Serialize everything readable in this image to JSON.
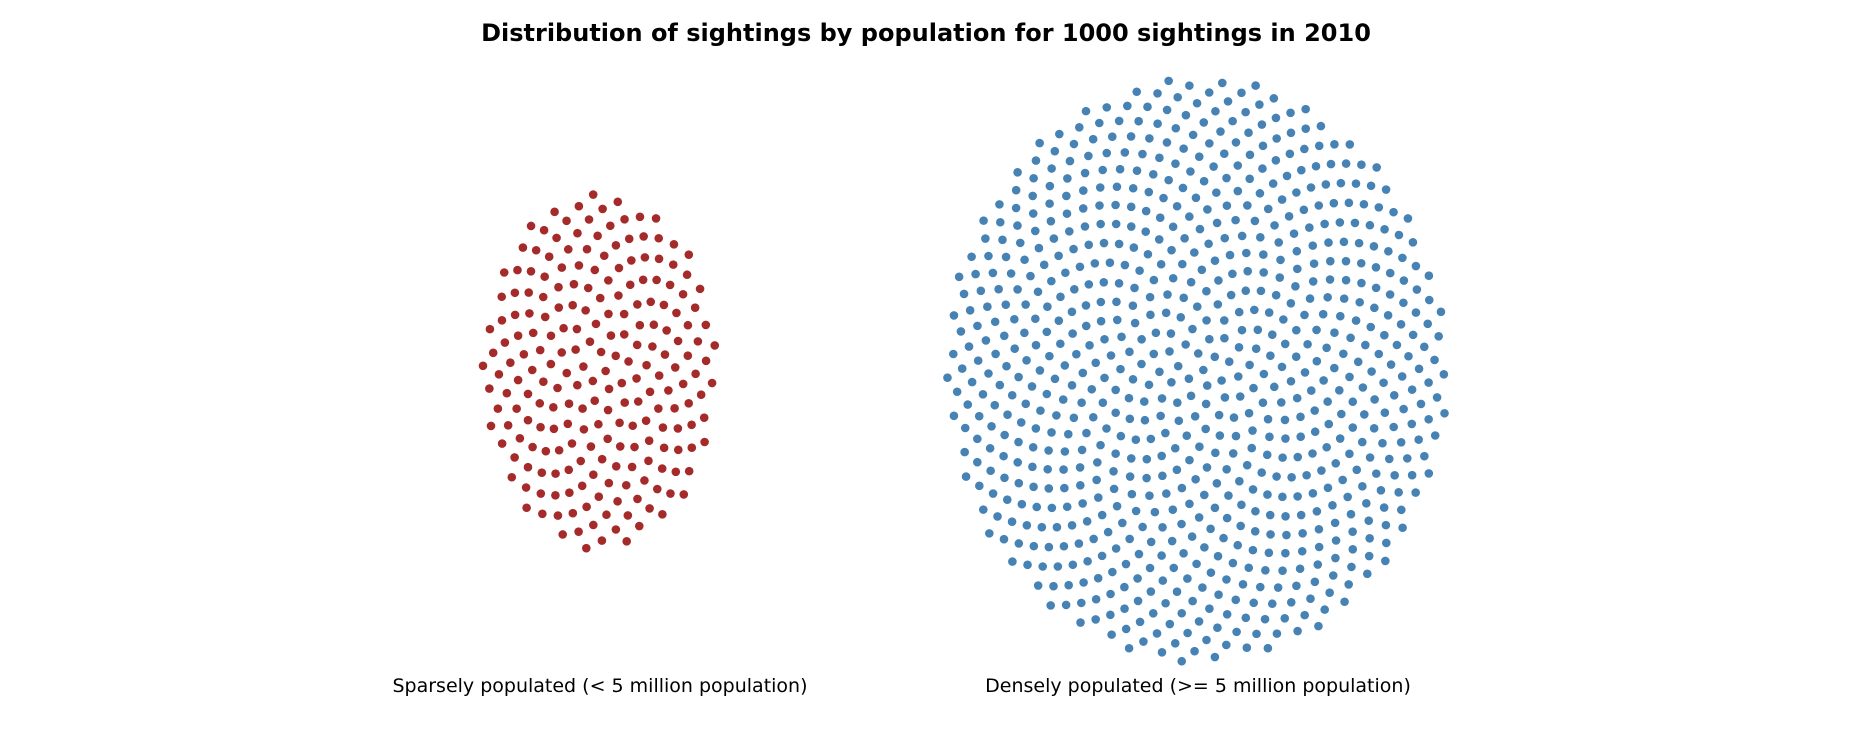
{
  "chart_data": {
    "type": "scatter",
    "title": "Distribution of sightings by population for 1000 sightings in 2010",
    "xlabel": "",
    "ylabel": "",
    "grid": false,
    "legend": "none",
    "total_sightings": 1000,
    "series": [
      {
        "label": "Sparsely populated (< 5 million population)",
        "count": 220,
        "color": "#a52a2a"
      },
      {
        "label": "Densely populated (>= 5 million population)",
        "count": 780,
        "color": "#4682b4"
      }
    ]
  }
}
